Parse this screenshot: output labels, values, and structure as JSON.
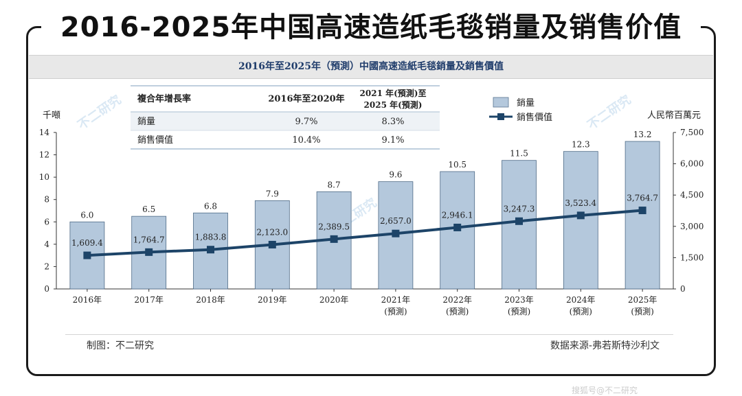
{
  "title": "2016-2025年中国高速造纸毛毯销量及销售价值",
  "subtitle": "2016年至2025年（預測）中國高速造紙毛毯銷量及銷售價值",
  "cagr_table": {
    "headers": [
      "複合年增長率",
      "2016年至2020年",
      "2021 年(預測)至",
      "2025 年(預測)"
    ],
    "rows": [
      {
        "label": "銷量",
        "v1": "9.7%",
        "v2": "8.3%"
      },
      {
        "label": "銷售價值",
        "v1": "10.4%",
        "v2": "9.1%"
      }
    ]
  },
  "chart_data": {
    "type": "bar",
    "categories": [
      "2016年",
      "2017年",
      "2018年",
      "2019年",
      "2020年",
      "2021年",
      "2022年",
      "2023年",
      "2024年",
      "2025年"
    ],
    "category_sublabels": [
      "",
      "",
      "",
      "",
      "",
      "(預測)",
      "(預測)",
      "(預測)",
      "(預測)",
      "(預測)"
    ],
    "series": [
      {
        "name": "銷量",
        "axis": "left",
        "kind": "bar",
        "values": [
          6.0,
          6.5,
          6.8,
          7.9,
          8.7,
          9.6,
          10.5,
          11.5,
          12.3,
          13.2
        ],
        "labels": [
          "6.0",
          "6.5",
          "6.8",
          "7.9",
          "8.7",
          "9.6",
          "10.5",
          "11.5",
          "12.3",
          "13.2"
        ],
        "color": "#b4c8dc"
      },
      {
        "name": "銷售價值",
        "axis": "right",
        "kind": "line",
        "values": [
          1609.4,
          1764.7,
          1883.8,
          2123.0,
          2389.5,
          2657.0,
          2946.1,
          3247.3,
          3523.4,
          3764.7
        ],
        "labels": [
          "1,609.4",
          "1,764.7",
          "1,883.8",
          "2,123.0",
          "2,389.5",
          "2,657.0",
          "2,946.1",
          "3,247.3",
          "3,523.4",
          "3,764.7"
        ],
        "color": "#1d4468"
      }
    ],
    "ylabel_left": "千噸",
    "ylabel_right": "人民幣百萬元",
    "ylim_left": [
      0,
      14
    ],
    "yticks_left": [
      "0",
      "2",
      "4",
      "6",
      "8",
      "10",
      "12",
      "14"
    ],
    "ylim_right": [
      0,
      7500
    ],
    "yticks_right": [
      "0",
      "1,500",
      "3,000",
      "4,500",
      "6,000",
      "7,500"
    ],
    "legend": [
      "銷量",
      "銷售價值"
    ]
  },
  "footer": {
    "left": "制图：不二研究",
    "right": "数据来源-弗若斯特沙利文"
  },
  "watermark_text": "不二研究",
  "bottom_partial": "搜狐号@不二研究"
}
